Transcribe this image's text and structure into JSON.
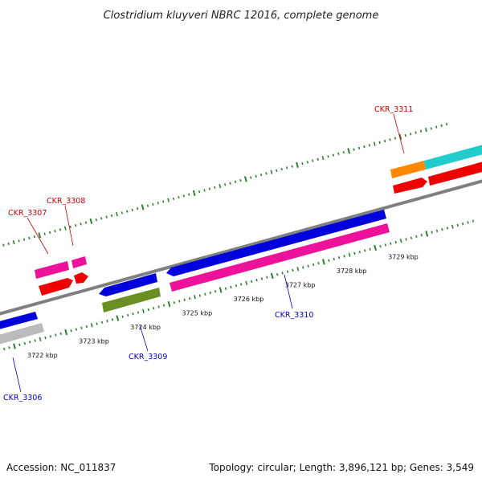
{
  "title": "Clostridium kluyveri NBRC 12016, complete genome",
  "footer": {
    "accession": "Accession: NC_011837",
    "summary": "Topology: circular; Length: 3,896,121 bp; Genes: 3,549"
  },
  "colors": {
    "backbone": "#808080",
    "tick": "#2e7d32",
    "forward_label": "#cc0000",
    "reverse_label": "#0000bb"
  },
  "position_ticks": [
    {
      "kbp": 3722,
      "label": "3722 kbp"
    },
    {
      "kbp": 3723,
      "label": "3723 kbp"
    },
    {
      "kbp": 3724,
      "label": "3724 kbp"
    },
    {
      "kbp": 3725,
      "label": "3725 kbp"
    },
    {
      "kbp": 3726,
      "label": "3726 kbp"
    },
    {
      "kbp": 3727,
      "label": "3727 kbp"
    },
    {
      "kbp": 3728,
      "label": "3728 kbp"
    },
    {
      "kbp": 3729,
      "label": "3729 kbp"
    }
  ],
  "genes": [
    {
      "id": "CKR_3306",
      "strand": "reverse",
      "color": "#0000dd"
    },
    {
      "id": "CKR_3307",
      "strand": "forward",
      "color": "#ee1199"
    },
    {
      "id": "CKR_3308",
      "strand": "forward",
      "color": "#ee1199"
    },
    {
      "id": "CKR_3309",
      "strand": "reverse",
      "color": "#0000dd"
    },
    {
      "id": "CKR_3310",
      "strand": "reverse",
      "color": "#ee1199"
    },
    {
      "id": "CKR_3311",
      "strand": "forward",
      "color": "#ff8800"
    }
  ]
}
